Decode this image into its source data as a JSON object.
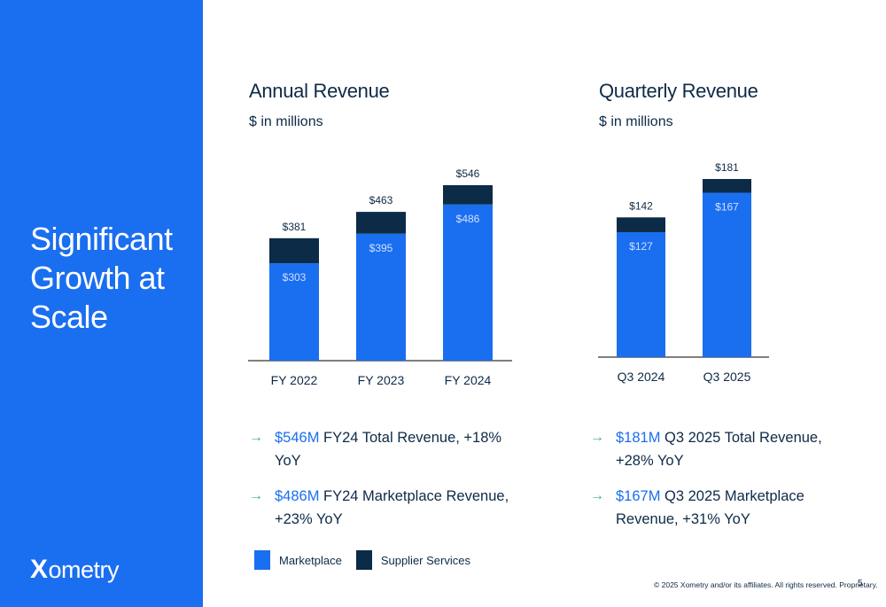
{
  "slide": {
    "title": "Significant Growth at Scale",
    "logo_mark": "X",
    "logo_rest": "ometry",
    "footer": "© 2025 Xometry and/or its affiliates. All rights reserved. Proprietary.",
    "page_number": "5"
  },
  "colors": {
    "panel": "#1a6ef0",
    "marketplace": "#1a6ef0",
    "supplier_services": "#0b2b47",
    "text_dark": "#0e2a47",
    "highlight": "#1a6ef0",
    "arrow": "#3ab27a"
  },
  "chart_data": [
    {
      "type": "bar",
      "stacked": true,
      "title": "Annual Revenue",
      "subtitle": "$ in millions",
      "categories": [
        "FY 2022",
        "FY 2023",
        "FY 2024"
      ],
      "series": [
        {
          "name": "Marketplace",
          "values": [
            303,
            395,
            486
          ],
          "labels": [
            "$303",
            "$395",
            "$486"
          ]
        },
        {
          "name": "Supplier Services",
          "values": [
            78,
            68,
            60
          ]
        }
      ],
      "totals": [
        381,
        463,
        546
      ],
      "total_labels": [
        "$381",
        "$463",
        "$546"
      ],
      "ylim": [
        0,
        546
      ],
      "grid": false,
      "legend": "bottom"
    },
    {
      "type": "bar",
      "stacked": true,
      "title": "Quarterly Revenue",
      "subtitle": "$ in millions",
      "categories": [
        "Q3 2024",
        "Q3 2025"
      ],
      "series": [
        {
          "name": "Marketplace",
          "values": [
            127,
            167
          ],
          "labels": [
            "$127",
            "$167"
          ]
        },
        {
          "name": "Supplier Services",
          "values": [
            15,
            14
          ]
        }
      ],
      "totals": [
        142,
        181
      ],
      "total_labels": [
        "$142",
        "$181"
      ],
      "ylim": [
        0,
        181
      ],
      "grid": false,
      "legend": "bottom"
    }
  ],
  "annual_bullets": [
    {
      "highlight": "$546M",
      "text": " FY24 Total Revenue, +18% YoY"
    },
    {
      "highlight": "$486M",
      "text": " FY24 Marketplace Revenue, +23% YoY"
    }
  ],
  "quarterly_bullets": [
    {
      "highlight": "$181M",
      "text": " Q3 2025 Total Revenue, +28% YoY"
    },
    {
      "highlight": "$167M",
      "text": " Q3 2025 Marketplace Revenue, +31% YoY"
    }
  ],
  "bullet_arrow": "→",
  "legend": {
    "marketplace": "Marketplace",
    "supplier_services": "Supplier Services"
  }
}
